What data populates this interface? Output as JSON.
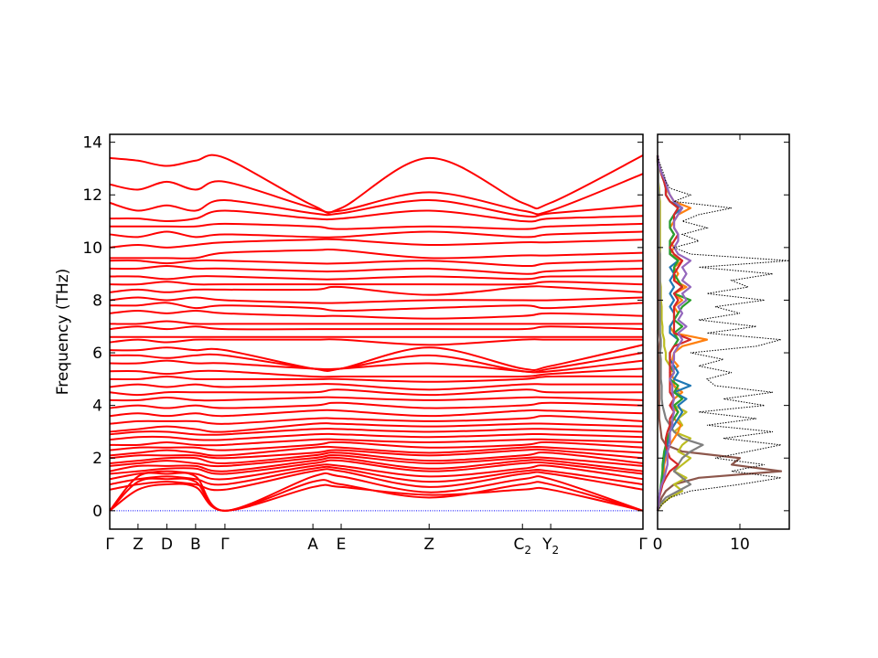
{
  "chart_data": [
    {
      "type": "line",
      "ylabel": "Frequency (THz)",
      "ylim": [
        -0.7,
        14.3
      ],
      "yticks": [
        0,
        2,
        4,
        6,
        8,
        10,
        12,
        14
      ],
      "grid": false,
      "band_color": "#ff0000",
      "zero_line_color": "#0000ff",
      "kpath_labels": [
        "Γ",
        "Z",
        "D",
        "B",
        "Γ",
        "A",
        "E",
        "Z",
        "C2",
        "Y2",
        "Γ"
      ],
      "kpath_positions": [
        0,
        0.053,
        0.107,
        0.161,
        0.216,
        0.381,
        0.434,
        0.599,
        0.774,
        0.827,
        1.0
      ],
      "bands": [
        [
          0,
          0.8,
          1.0,
          0.9,
          0,
          0.9,
          0.9,
          0.6,
          0.8,
          0.8,
          0
        ],
        [
          0,
          1.1,
          1.2,
          1.1,
          0,
          1.1,
          1.0,
          0.5,
          1.0,
          1.0,
          0
        ],
        [
          0,
          1.3,
          1.4,
          1.3,
          0,
          1.3,
          1.3,
          0.7,
          1.2,
          1.2,
          0
        ],
        [
          0.8,
          1.0,
          1.1,
          1.0,
          0.8,
          1.5,
          1.5,
          0.9,
          1.4,
          1.4,
          0.8
        ],
        [
          1.0,
          1.2,
          1.3,
          1.2,
          1.0,
          1.6,
          1.6,
          1.1,
          1.5,
          1.5,
          1.0
        ],
        [
          1.2,
          1.4,
          1.5,
          1.4,
          1.2,
          1.7,
          1.7,
          1.3,
          1.6,
          1.7,
          1.2
        ],
        [
          1.4,
          1.5,
          1.6,
          1.6,
          1.4,
          1.8,
          1.9,
          1.5,
          1.8,
          1.8,
          1.4
        ],
        [
          1.5,
          1.7,
          1.7,
          1.7,
          1.5,
          1.9,
          2.0,
          1.6,
          1.9,
          1.9,
          1.5
        ],
        [
          1.7,
          1.8,
          1.9,
          1.8,
          1.7,
          2.0,
          2.1,
          1.8,
          2.0,
          2.0,
          1.7
        ],
        [
          1.8,
          1.9,
          2.0,
          2.0,
          1.8,
          2.1,
          2.2,
          1.9,
          2.1,
          2.2,
          1.8
        ],
        [
          2.0,
          2.1,
          2.1,
          2.1,
          2.0,
          2.2,
          2.3,
          2.1,
          2.3,
          2.3,
          2.0
        ],
        [
          2.1,
          2.2,
          2.3,
          2.2,
          2.1,
          2.4,
          2.4,
          2.2,
          2.4,
          2.4,
          2.2
        ],
        [
          2.3,
          2.4,
          2.4,
          2.4,
          2.3,
          2.5,
          2.6,
          2.4,
          2.5,
          2.6,
          2.4
        ],
        [
          2.5,
          2.5,
          2.6,
          2.5,
          2.5,
          2.7,
          2.7,
          2.6,
          2.7,
          2.7,
          2.6
        ],
        [
          2.7,
          2.8,
          2.8,
          2.7,
          2.7,
          2.9,
          2.9,
          2.8,
          2.9,
          2.9,
          2.8
        ],
        [
          2.9,
          3.0,
          3.0,
          2.9,
          2.9,
          3.1,
          3.1,
          3.0,
          3.1,
          3.1,
          3.0
        ],
        [
          3.0,
          3.1,
          3.2,
          3.1,
          3.0,
          3.3,
          3.3,
          3.2,
          3.3,
          3.3,
          3.2
        ],
        [
          3.3,
          3.4,
          3.4,
          3.4,
          3.3,
          3.5,
          3.5,
          3.4,
          3.5,
          3.6,
          3.4
        ],
        [
          3.6,
          3.7,
          3.6,
          3.7,
          3.6,
          3.8,
          3.8,
          3.6,
          3.8,
          3.8,
          3.7
        ],
        [
          3.9,
          4.0,
          3.9,
          4.0,
          3.9,
          4.0,
          4.1,
          3.9,
          4.0,
          4.1,
          4.0
        ],
        [
          4.2,
          4.2,
          4.3,
          4.2,
          4.2,
          4.3,
          4.3,
          4.2,
          4.3,
          4.3,
          4.2
        ],
        [
          4.5,
          4.4,
          4.5,
          4.5,
          4.5,
          4.5,
          4.6,
          4.4,
          4.6,
          4.5,
          4.5
        ],
        [
          4.7,
          4.8,
          4.7,
          4.8,
          4.7,
          4.8,
          4.8,
          4.6,
          4.8,
          4.8,
          4.8
        ],
        [
          5.0,
          5.0,
          5.1,
          5.0,
          5.0,
          5.0,
          5.0,
          4.9,
          5.0,
          5.1,
          5.1
        ],
        [
          5.3,
          5.3,
          5.2,
          5.3,
          5.3,
          5.1,
          5.1,
          5.1,
          5.1,
          5.2,
          5.4
        ],
        [
          5.6,
          5.6,
          5.7,
          5.6,
          5.6,
          5.4,
          5.4,
          5.6,
          5.3,
          5.3,
          5.7
        ],
        [
          5.9,
          5.9,
          5.8,
          5.9,
          5.9,
          5.4,
          5.4,
          5.9,
          5.3,
          5.4,
          6.0
        ],
        [
          6.1,
          6.1,
          6.2,
          6.1,
          6.1,
          5.4,
          5.4,
          6.2,
          5.4,
          5.5,
          6.3
        ],
        [
          6.4,
          6.5,
          6.4,
          6.5,
          6.5,
          6.5,
          6.5,
          6.3,
          6.5,
          6.5,
          6.5
        ],
        [
          6.6,
          6.6,
          6.6,
          6.6,
          6.6,
          6.6,
          6.6,
          6.6,
          6.6,
          6.6,
          6.6
        ],
        [
          6.9,
          7.0,
          6.9,
          7.0,
          6.9,
          6.9,
          6.9,
          6.9,
          6.9,
          7.0,
          6.9
        ],
        [
          7.1,
          7.1,
          7.2,
          7.1,
          7.1,
          7.1,
          7.1,
          7.1,
          7.1,
          7.1,
          7.1
        ],
        [
          7.5,
          7.6,
          7.5,
          7.6,
          7.5,
          7.4,
          7.4,
          7.3,
          7.4,
          7.5,
          7.4
        ],
        [
          7.8,
          7.8,
          7.9,
          7.7,
          7.8,
          7.7,
          7.6,
          7.7,
          7.8,
          7.7,
          7.9
        ],
        [
          8.0,
          8.1,
          8.0,
          8.1,
          8.0,
          7.9,
          7.9,
          8.0,
          8.0,
          8.0,
          8.1
        ],
        [
          8.3,
          8.4,
          8.3,
          8.4,
          8.4,
          8.4,
          8.5,
          8.2,
          8.5,
          8.5,
          8.3
        ],
        [
          8.6,
          8.6,
          8.7,
          8.6,
          8.6,
          8.6,
          8.6,
          8.6,
          8.6,
          8.7,
          8.6
        ],
        [
          8.9,
          8.9,
          8.8,
          8.9,
          8.9,
          8.8,
          8.8,
          8.9,
          8.8,
          8.9,
          8.9
        ],
        [
          9.2,
          9.2,
          9.3,
          9.2,
          9.2,
          9.1,
          9.1,
          9.2,
          9.0,
          9.1,
          9.2
        ],
        [
          9.5,
          9.5,
          9.4,
          9.5,
          9.5,
          9.4,
          9.4,
          9.5,
          9.3,
          9.4,
          9.5
        ],
        [
          9.6,
          9.6,
          9.6,
          9.6,
          9.8,
          9.9,
          9.9,
          9.6,
          9.7,
          9.7,
          9.8
        ],
        [
          10.0,
          10.1,
          10.0,
          10.1,
          10.2,
          10.3,
          10.3,
          10.1,
          10.2,
          10.2,
          10.3
        ],
        [
          10.5,
          10.4,
          10.6,
          10.4,
          10.5,
          10.4,
          10.4,
          10.6,
          10.4,
          10.5,
          10.6
        ],
        [
          10.8,
          10.8,
          10.8,
          10.8,
          10.9,
          10.8,
          10.7,
          10.8,
          10.7,
          10.8,
          10.9
        ],
        [
          11.1,
          11.1,
          11.0,
          11.1,
          11.4,
          11.1,
          11.1,
          11.4,
          11.0,
          11.1,
          11.2
        ],
        [
          11.7,
          11.4,
          11.6,
          11.4,
          11.8,
          11.3,
          11.3,
          11.8,
          11.2,
          11.3,
          11.6
        ],
        [
          12.4,
          12.2,
          12.5,
          12.2,
          12.5,
          11.5,
          11.4,
          12.1,
          11.4,
          11.4,
          12.8
        ],
        [
          13.4,
          13.3,
          13.1,
          13.3,
          13.4,
          11.6,
          11.5,
          13.4,
          11.7,
          11.7,
          13.5
        ]
      ]
    },
    {
      "type": "line",
      "xlim": [
        0,
        16
      ],
      "xticks": [
        0,
        10
      ],
      "ylim": [
        -0.7,
        14.3
      ],
      "grid": false,
      "total_dos": {
        "color": "#000000",
        "freq": [
          0,
          0.25,
          0.5,
          0.75,
          1.0,
          1.25,
          1.5,
          1.75,
          2.0,
          2.25,
          2.5,
          2.75,
          3.0,
          3.25,
          3.5,
          3.75,
          4.0,
          4.25,
          4.5,
          4.75,
          5.0,
          5.25,
          5.5,
          5.75,
          6.0,
          6.25,
          6.5,
          6.75,
          7.0,
          7.25,
          7.5,
          7.75,
          8.0,
          8.25,
          8.5,
          8.75,
          9.0,
          9.25,
          9.5,
          9.75,
          10.0,
          10.25,
          10.5,
          10.75,
          11.0,
          11.25,
          11.5,
          11.75,
          12.0,
          12.25,
          12.5,
          12.75,
          13.0,
          13.25,
          13.5
        ],
        "dos": [
          0,
          0.6,
          1.5,
          4,
          10,
          15,
          9,
          13,
          7,
          11,
          15,
          8,
          14,
          6,
          12,
          5,
          13,
          8,
          14,
          7,
          6,
          9,
          5,
          8,
          4,
          12,
          15,
          6,
          12,
          5,
          10,
          7,
          13,
          6,
          11,
          9,
          14,
          5,
          16,
          4,
          2,
          5,
          3,
          6,
          3,
          5,
          9,
          2,
          4,
          1.5,
          1,
          0.8,
          0.5,
          0.2,
          0
        ]
      },
      "partial_dos": [
        {
          "color": "#8c564b",
          "values": [
            0,
            0.2,
            0.5,
            1,
            2,
            5,
            15,
            9,
            10,
            3,
            1,
            0.5,
            0.4,
            0.3,
            0.2,
            0.2,
            0.2,
            0.2,
            0.2,
            0.2,
            0.2,
            0.2,
            0.2,
            0.2,
            0.2,
            0.2,
            0.3,
            0.2,
            0.2,
            0.2,
            0.2,
            0.2,
            0.2,
            0.2,
            0.2,
            0.2,
            0.2,
            0.2,
            0.2,
            0.2,
            0.2,
            0.2,
            0.2,
            0.2,
            0.2,
            0.2,
            0.2,
            0.2,
            0.2,
            0.1,
            0.1,
            0.1,
            0.1,
            0,
            0
          ]
        },
        {
          "color": "#bcbd22",
          "values": [
            0,
            0.5,
            1.5,
            3,
            2,
            3.5,
            2,
            3,
            4,
            2.5,
            3,
            4,
            2,
            3,
            2.5,
            3.5,
            2,
            3,
            2.5,
            2,
            1.5,
            2,
            1.5,
            1,
            1,
            0.8,
            0.8,
            0.6,
            0.6,
            0.5,
            0.5,
            0.5,
            0.4,
            0.4,
            0.4,
            0.3,
            0.3,
            0.3,
            0.3,
            0.3,
            0.3,
            0.3,
            0.3,
            0.3,
            0.3,
            0.3,
            0.3,
            0.3,
            0.2,
            0.2,
            0.1,
            0.1,
            0.1,
            0,
            0
          ]
        },
        {
          "color": "#7f7f7f",
          "values": [
            0,
            0.3,
            1,
            2.5,
            4,
            3,
            2,
            2.5,
            3,
            4,
            5.5,
            3,
            2,
            1.5,
            1,
            0.8,
            0.6,
            0.5,
            0.5,
            0.5,
            0.4,
            0.4,
            0.4,
            0.4,
            0.3,
            0.4,
            0.4,
            0.3,
            0.3,
            0.3,
            0.3,
            0.3,
            0.3,
            0.3,
            0.3,
            0.3,
            0.3,
            0.3,
            0.3,
            0.3,
            0.2,
            0.2,
            0.2,
            0.2,
            0.2,
            0.2,
            0.2,
            0.2,
            0.2,
            0.1,
            0.1,
            0.1,
            0.1,
            0,
            0
          ]
        },
        {
          "color": "#ff7f0e",
          "values": [
            0,
            0.1,
            0.2,
            0.4,
            0.6,
            0.8,
            0.8,
            0.8,
            1,
            1.2,
            1.5,
            2,
            2.5,
            2.8,
            2,
            2.5,
            1.5,
            2,
            3,
            2,
            2,
            1.5,
            2.5,
            1.8,
            2,
            3,
            6,
            2,
            1.5,
            2,
            2.5,
            2,
            3,
            2,
            3.5,
            2,
            2.5,
            2,
            3,
            1.5,
            2,
            1.5,
            2,
            1.5,
            2,
            2.5,
            4,
            2,
            1.5,
            1,
            0.8,
            0.5,
            0.3,
            0.1,
            0
          ]
        },
        {
          "color": "#1f77b4",
          "values": [
            0,
            0.1,
            0.2,
            0.3,
            0.5,
            0.6,
            0.6,
            0.7,
            0.8,
            1,
            1.2,
            1.4,
            1.5,
            2,
            2.5,
            3,
            2.5,
            3.5,
            2,
            4,
            2,
            2.5,
            2,
            1.5,
            1.5,
            2,
            2.5,
            1.5,
            1.5,
            2,
            2,
            1.5,
            2,
            1.5,
            2,
            1.5,
            2,
            1.5,
            2.5,
            1.5,
            1.5,
            1.5,
            2,
            1.5,
            1.5,
            2,
            3,
            1.5,
            1,
            1,
            0.8,
            0.5,
            0.3,
            0.1,
            0
          ]
        },
        {
          "color": "#2ca02c",
          "values": [
            0,
            0.1,
            0.2,
            0.3,
            0.4,
            0.5,
            0.6,
            0.6,
            0.7,
            0.8,
            1,
            1.2,
            1.5,
            1.5,
            2,
            2.5,
            2,
            3,
            2,
            2.5,
            1.5,
            2,
            1.5,
            1.5,
            1.5,
            2,
            2.5,
            2,
            3,
            2,
            2.5,
            3,
            4,
            2,
            3,
            2.5,
            2,
            2,
            2.5,
            1.5,
            1.5,
            1.5,
            2,
            1.5,
            1.5,
            2,
            2.5,
            1.5,
            1,
            1,
            0.8,
            0.5,
            0.3,
            0.1,
            0
          ]
        },
        {
          "color": "#d62728",
          "values": [
            0,
            0.1,
            0.2,
            0.4,
            0.6,
            1,
            1.5,
            2.5,
            1.5,
            1.2,
            1,
            1,
            1.2,
            1.5,
            1.5,
            2,
            1.5,
            2,
            1.5,
            1.5,
            1.5,
            1.5,
            1.5,
            1.5,
            1.5,
            2,
            4,
            2,
            2,
            2,
            2,
            2,
            2.5,
            2,
            3,
            2,
            2,
            2.5,
            3,
            2,
            1.5,
            2,
            2.5,
            2,
            2,
            2,
            2.5,
            1.5,
            1,
            1,
            0.8,
            0.5,
            0.3,
            0.1,
            0
          ]
        },
        {
          "color": "#9467bd",
          "values": [
            0,
            0.1,
            0.2,
            0.3,
            0.5,
            0.8,
            1,
            1.2,
            1.2,
            1.2,
            1.5,
            1.5,
            1.5,
            1.8,
            1.8,
            2,
            1.8,
            2,
            1.8,
            1.8,
            1.5,
            2,
            1.8,
            2,
            2,
            2.5,
            3,
            2.5,
            3.5,
            2.5,
            3,
            2.5,
            3.5,
            3,
            4,
            3,
            3.5,
            3,
            4,
            2.5,
            2,
            2.5,
            2.5,
            2,
            2,
            2.5,
            3,
            2,
            1.5,
            1.2,
            1,
            0.6,
            0.3,
            0.1,
            0
          ]
        }
      ]
    }
  ]
}
